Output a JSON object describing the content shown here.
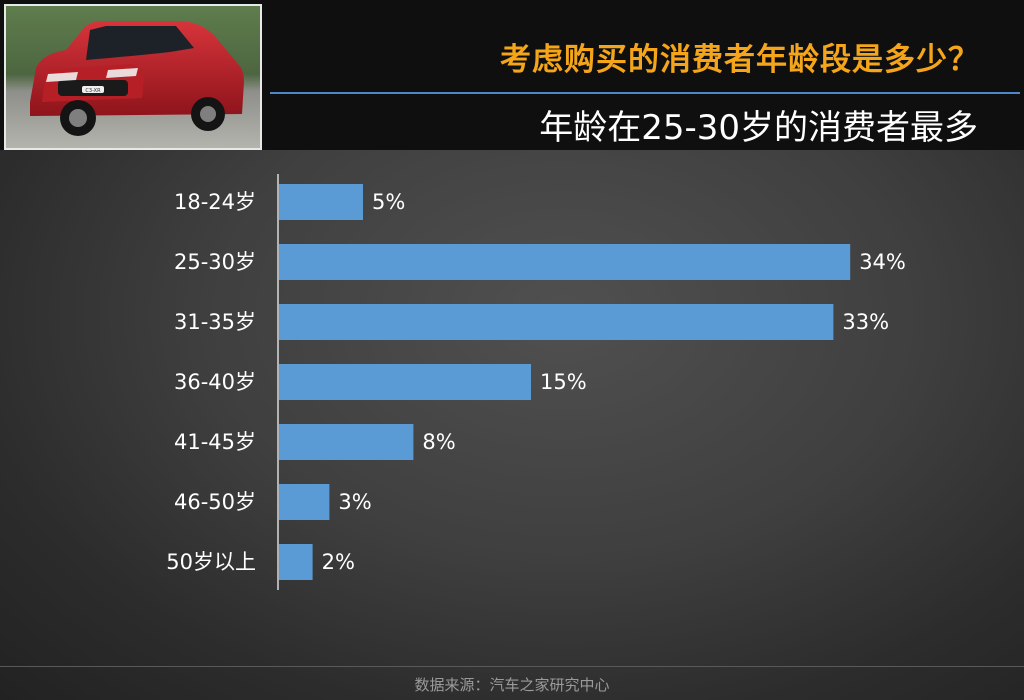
{
  "header": {
    "title": "考虑购买的消费者年龄段是多少？",
    "subtitle": "年龄在25-30岁的消费者最多"
  },
  "photo": {
    "badge_text": "C3-XR"
  },
  "chart_data": {
    "type": "bar",
    "orientation": "horizontal",
    "categories": [
      "18-24岁",
      "25-30岁",
      "31-35岁",
      "36-40岁",
      "41-45岁",
      "46-50岁",
      "50岁以上"
    ],
    "values": [
      5,
      34,
      33,
      15,
      8,
      3,
      2
    ],
    "value_labels": [
      "5%",
      "34%",
      "33%",
      "15%",
      "8%",
      "3%",
      "2%"
    ],
    "value_unit": "%",
    "xlim": [
      0,
      40
    ],
    "grid": false,
    "bar_color": "#5b9bd5"
  },
  "footer": {
    "source": "数据来源：汽车之家研究中心"
  },
  "colors": {
    "title": "#f4a51a",
    "rule": "#4b89c7",
    "bar": "#5b9bd5",
    "text": "#ffffff"
  }
}
